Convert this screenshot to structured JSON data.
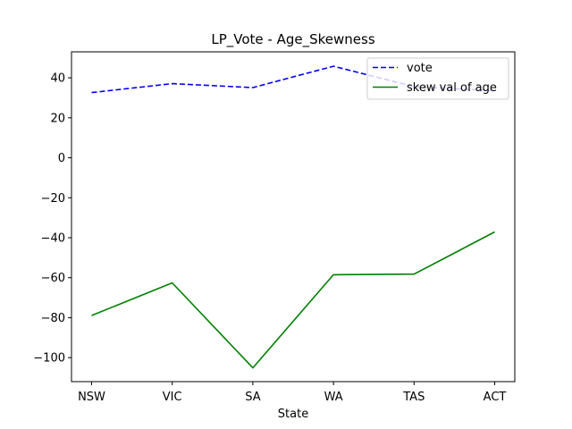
{
  "chart_data": {
    "type": "line",
    "title": "LP_Vote - Age_Skewness",
    "xlabel": "State",
    "ylabel": "",
    "categories": [
      "NSW",
      "VIC",
      "SA",
      "WA",
      "TAS",
      "ACT"
    ],
    "ylim": [
      -112,
      53
    ],
    "yticks": [
      40,
      20,
      0,
      -20,
      -40,
      -60,
      -80,
      -100
    ],
    "ytick_labels": [
      "40",
      "20",
      "0",
      "−20",
      "−40",
      "−60",
      "−80",
      "−100"
    ],
    "grid": false,
    "legend_position": "top-right",
    "series": [
      {
        "name": "vote",
        "color": "#0000ff",
        "style": "dashed",
        "values": [
          32.6,
          37.1,
          35.1,
          45.8,
          35.6,
          33.5
        ]
      },
      {
        "name": "skew val of age",
        "color": "#008000",
        "style": "solid",
        "values": [
          -78.9,
          -62.6,
          -105.1,
          -58.5,
          -58.2,
          -37.1
        ]
      }
    ]
  }
}
